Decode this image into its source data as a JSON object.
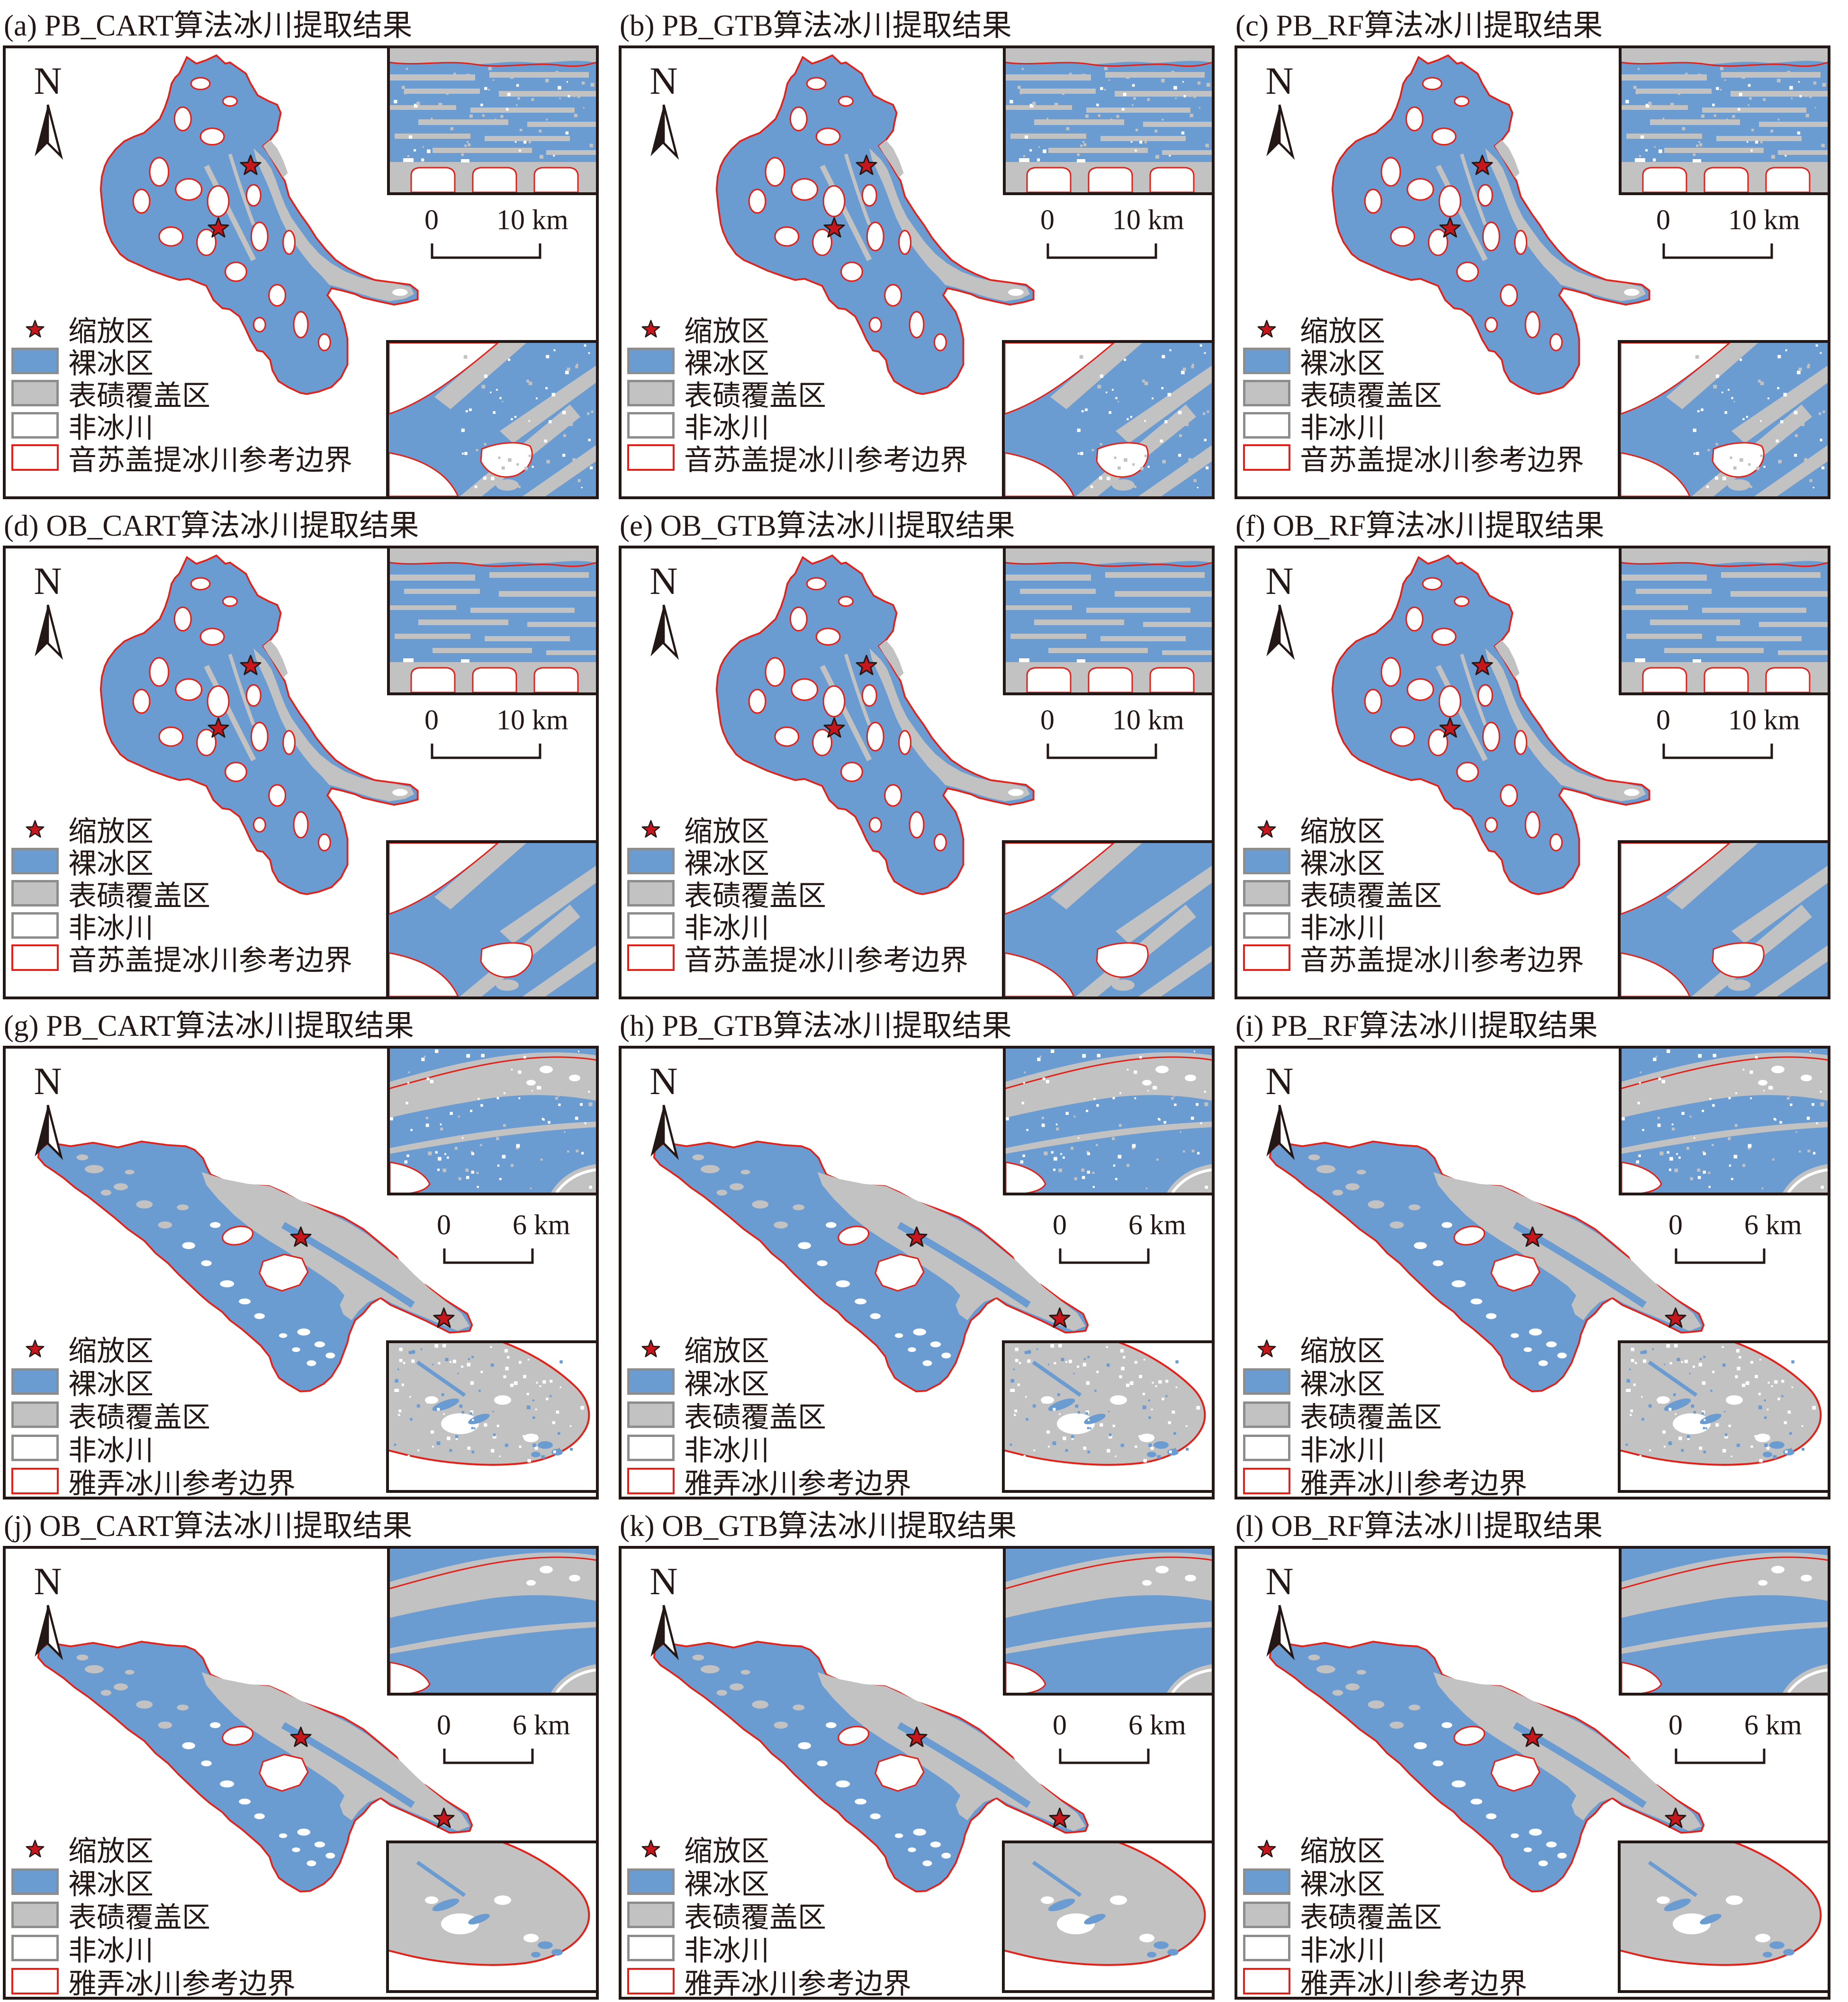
{
  "colors": {
    "bare_ice_blue": "#6B9CD1",
    "debris_gray": "#C2C2C2",
    "boundary_red": "#E32119",
    "ink_black": "#231815",
    "legend_swatch_border_gray": "#8D8D8D",
    "star_red": "#C8161D"
  },
  "north_label": "N",
  "legend": {
    "zoom_area": "缩放区",
    "bare_ice": "裸冰区",
    "debris_covered": "表碛覆盖区",
    "non_glacier": "非冰川"
  },
  "panels": [
    {
      "id": "a",
      "title": "(a) PB_CART算法冰川提取结果",
      "glacier": "yinsugaiti",
      "method": "PB",
      "scale_zero": "0",
      "scale_end": "10 km",
      "boundary_label": "音苏盖提冰川参考边界"
    },
    {
      "id": "b",
      "title": "(b) PB_GTB算法冰川提取结果",
      "glacier": "yinsugaiti",
      "method": "PB",
      "scale_zero": "0",
      "scale_end": "10 km",
      "boundary_label": "音苏盖提冰川参考边界"
    },
    {
      "id": "c",
      "title": "(c) PB_RF算法冰川提取结果",
      "glacier": "yinsugaiti",
      "method": "PB",
      "scale_zero": "0",
      "scale_end": "10 km",
      "boundary_label": "音苏盖提冰川参考边界"
    },
    {
      "id": "d",
      "title": "(d) OB_CART算法冰川提取结果",
      "glacier": "yinsugaiti",
      "method": "OB",
      "scale_zero": "0",
      "scale_end": "10 km",
      "boundary_label": "音苏盖提冰川参考边界"
    },
    {
      "id": "e",
      "title": "(e) OB_GTB算法冰川提取结果",
      "glacier": "yinsugaiti",
      "method": "OB",
      "scale_zero": "0",
      "scale_end": "10 km",
      "boundary_label": "音苏盖提冰川参考边界"
    },
    {
      "id": "f",
      "title": "(f) OB_RF算法冰川提取结果",
      "glacier": "yinsugaiti",
      "method": "OB",
      "scale_zero": "0",
      "scale_end": "10 km",
      "boundary_label": "音苏盖提冰川参考边界"
    },
    {
      "id": "g",
      "title": "(g) PB_CART算法冰川提取结果",
      "glacier": "yanong",
      "method": "PB",
      "scale_zero": "0",
      "scale_end": "6 km",
      "boundary_label": "雅弄冰川参考边界"
    },
    {
      "id": "h",
      "title": "(h) PB_GTB算法冰川提取结果",
      "glacier": "yanong",
      "method": "PB",
      "scale_zero": "0",
      "scale_end": "6 km",
      "boundary_label": "雅弄冰川参考边界"
    },
    {
      "id": "i",
      "title": "(i) PB_RF算法冰川提取结果",
      "glacier": "yanong",
      "method": "PB",
      "scale_zero": "0",
      "scale_end": "6 km",
      "boundary_label": "雅弄冰川参考边界"
    },
    {
      "id": "j",
      "title": "(j) OB_CART算法冰川提取结果",
      "glacier": "yanong",
      "method": "OB",
      "scale_zero": "0",
      "scale_end": "6 km",
      "boundary_label": "雅弄冰川参考边界"
    },
    {
      "id": "k",
      "title": "(k) OB_GTB算法冰川提取结果",
      "glacier": "yanong",
      "method": "OB",
      "scale_zero": "0",
      "scale_end": "6 km",
      "boundary_label": "雅弄冰川参考边界"
    },
    {
      "id": "l",
      "title": "(l) OB_RF算法冰川提取结果",
      "glacier": "yanong",
      "method": "OB",
      "scale_zero": "0",
      "scale_end": "6 km",
      "boundary_label": "雅弄冰川参考边界"
    }
  ]
}
